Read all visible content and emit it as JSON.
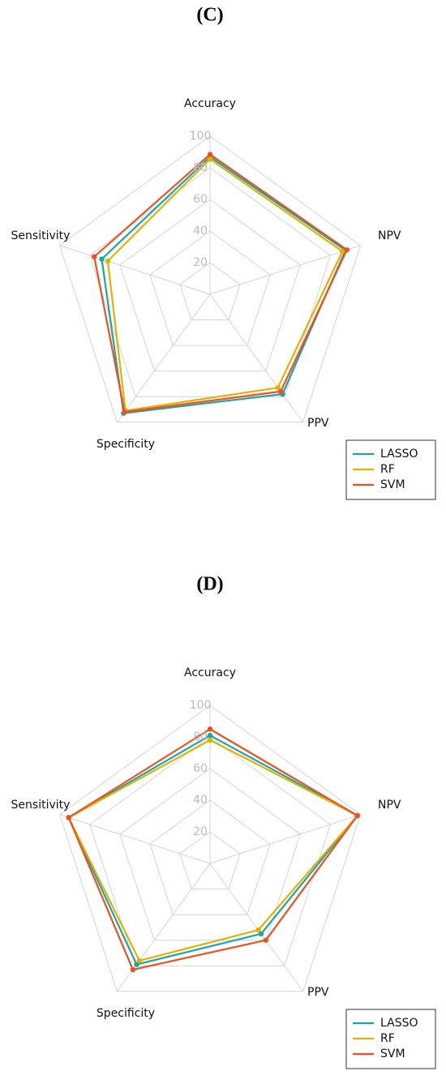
{
  "chart_data": [
    {
      "type": "radar",
      "title": "(C)",
      "categories": [
        "Accuracy",
        "NPV",
        "PPV",
        "Specificity",
        "Sensitivity"
      ],
      "rlim": [
        0,
        100
      ],
      "rticks": [
        20,
        40,
        60,
        80,
        100
      ],
      "grid": true,
      "legend": "bottom-right",
      "series": [
        {
          "name": "LASSO",
          "color": "#17a6b0",
          "values": [
            87,
            90,
            78,
            93,
            72
          ]
        },
        {
          "name": "RF",
          "color": "#e3b100",
          "values": [
            85.5,
            88,
            73,
            91,
            68
          ]
        },
        {
          "name": "SVM",
          "color": "#f0501e",
          "values": [
            88.5,
            91,
            76,
            92,
            77
          ]
        }
      ]
    },
    {
      "type": "radar",
      "title": "(D)",
      "categories": [
        "Accuracy",
        "NPV",
        "PPV",
        "Specificity",
        "Sensitivity"
      ],
      "rlim": [
        0,
        100
      ],
      "rticks": [
        20,
        40,
        60,
        80,
        100
      ],
      "grid": true,
      "legend": "bottom-right",
      "series": [
        {
          "name": "LASSO",
          "color": "#17a6b0",
          "values": [
            81,
            98,
            55,
            79,
            94
          ]
        },
        {
          "name": "RF",
          "color": "#e3b100",
          "values": [
            78,
            98,
            52,
            76,
            94
          ]
        },
        {
          "name": "SVM",
          "color": "#f0501e",
          "values": [
            85,
            98,
            60,
            83,
            94
          ]
        }
      ]
    }
  ]
}
